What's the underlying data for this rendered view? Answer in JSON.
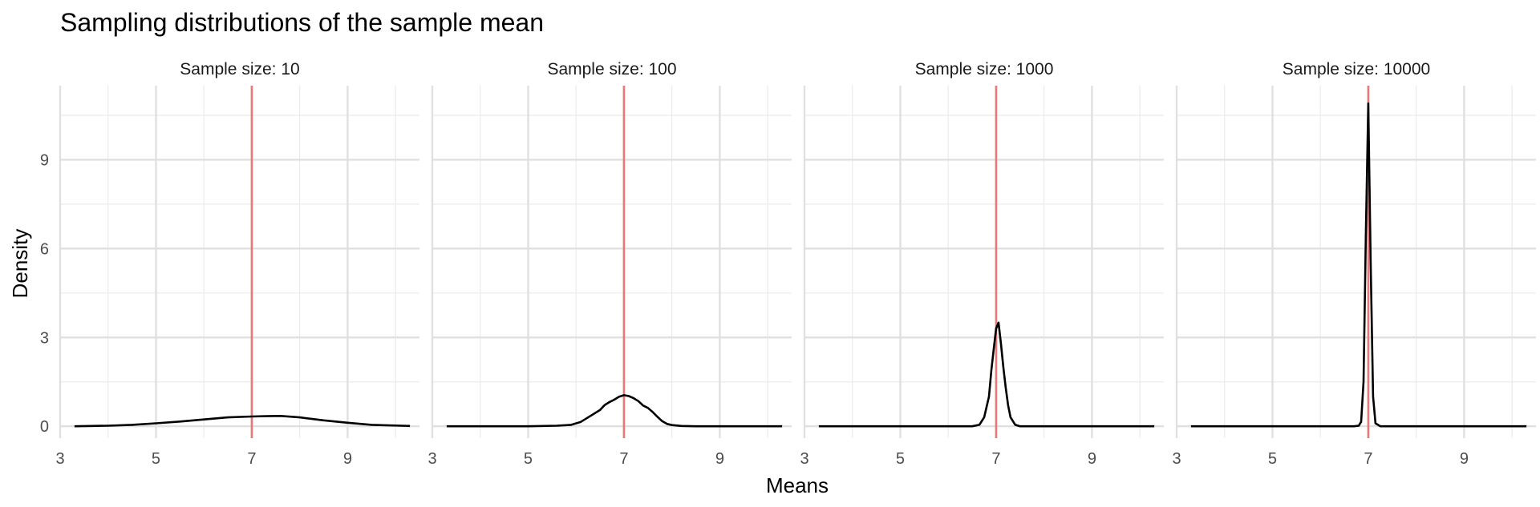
{
  "chart_data": {
    "type": "line",
    "title": "Sampling distributions of the sample mean",
    "xlabel": "Means",
    "ylabel": "Density",
    "xlim": [
      3,
      10.5
    ],
    "ylim": [
      -0.4,
      11.5
    ],
    "x_ticks": [
      "3",
      "5",
      "7",
      "9"
    ],
    "y_ticks": [
      "0",
      "3",
      "6",
      "9"
    ],
    "reference_line": {
      "x": 7,
      "color": "#e8797b"
    },
    "curve_color": "#000000",
    "grid": true,
    "panels": [
      {
        "label": "Sample size: 10",
        "x": [
          3.3,
          4.0,
          4.5,
          5.0,
          5.5,
          6.0,
          6.5,
          7.0,
          7.3,
          7.6,
          8.0,
          8.5,
          9.0,
          9.5,
          10.3
        ],
        "y": [
          0.0,
          0.02,
          0.05,
          0.1,
          0.16,
          0.23,
          0.3,
          0.33,
          0.34,
          0.35,
          0.3,
          0.2,
          0.12,
          0.05,
          0.01
        ]
      },
      {
        "label": "Sample size: 100",
        "x": [
          3.3,
          4.0,
          5.0,
          5.6,
          5.9,
          6.1,
          6.3,
          6.5,
          6.6,
          6.7,
          6.8,
          6.9,
          7.0,
          7.1,
          7.2,
          7.3,
          7.4,
          7.5,
          7.6,
          7.7,
          7.8,
          7.9,
          8.0,
          8.2,
          8.5,
          9.0,
          10.3
        ],
        "y": [
          0.0,
          0.0,
          0.0,
          0.02,
          0.05,
          0.15,
          0.35,
          0.55,
          0.72,
          0.82,
          0.9,
          1.0,
          1.05,
          1.02,
          0.95,
          0.85,
          0.7,
          0.62,
          0.48,
          0.32,
          0.17,
          0.08,
          0.04,
          0.01,
          0.0,
          0.0,
          0.0
        ]
      },
      {
        "label": "Sample size: 1000",
        "x": [
          3.3,
          5.0,
          6.5,
          6.65,
          6.75,
          6.85,
          6.9,
          6.95,
          7.0,
          7.05,
          7.1,
          7.15,
          7.2,
          7.25,
          7.3,
          7.4,
          7.5,
          8.0,
          9.0,
          10.3
        ],
        "y": [
          0.0,
          0.0,
          0.0,
          0.05,
          0.3,
          1.0,
          1.9,
          2.6,
          3.3,
          3.5,
          2.8,
          2.0,
          1.3,
          0.7,
          0.3,
          0.05,
          0.0,
          0.0,
          0.0,
          0.0
        ]
      },
      {
        "label": "Sample size: 10000",
        "x": [
          3.3,
          5.0,
          6.7,
          6.8,
          6.85,
          6.9,
          6.95,
          7.0,
          7.05,
          7.1,
          7.15,
          7.25,
          8.0,
          9.0,
          10.3
        ],
        "y": [
          0.0,
          0.0,
          0.0,
          0.02,
          0.15,
          1.5,
          6.5,
          10.9,
          5.5,
          1.0,
          0.1,
          0.0,
          0.0,
          0.0,
          0.0
        ]
      }
    ]
  }
}
